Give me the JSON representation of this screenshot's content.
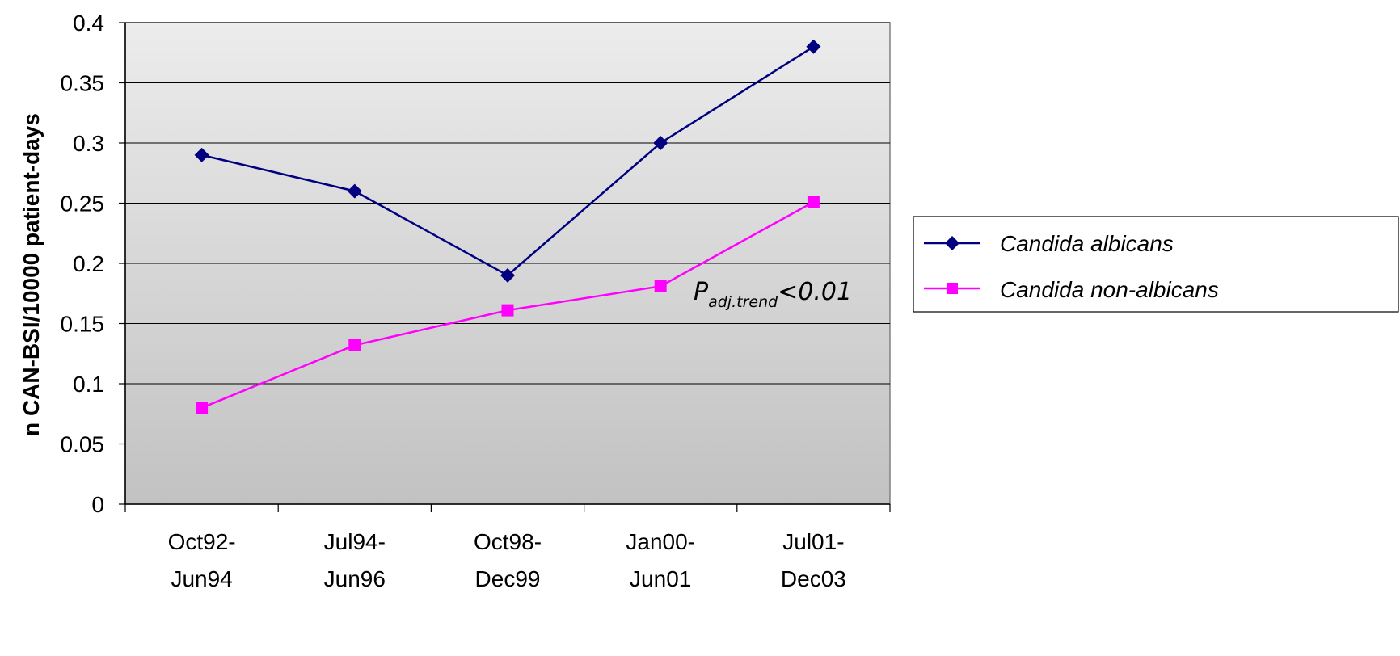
{
  "chart_data": {
    "type": "line",
    "title": "",
    "xlabel": "",
    "ylabel": "n CAN-BSI/10000 patient-days",
    "categories": [
      [
        "Oct92-",
        "Jun94"
      ],
      [
        "Jul94-",
        "Jun96"
      ],
      [
        "Oct98-",
        "Dec99"
      ],
      [
        "Jan00-",
        "Jun01"
      ],
      [
        "Jul01-",
        "Dec03"
      ]
    ],
    "ylim": [
      0,
      0.4
    ],
    "yticks": [
      "0",
      "0.05",
      "0.1",
      "0.15",
      "0.2",
      "0.25",
      "0.3",
      "0.35",
      "0.4"
    ],
    "grid": true,
    "legend_position": "right",
    "series": [
      {
        "name": "Candida albicans",
        "values": [
          0.29,
          0.26,
          0.19,
          0.3,
          0.38
        ],
        "color": "#000080",
        "marker": "diamond"
      },
      {
        "name": "Candida non-albicans",
        "values": [
          0.08,
          0.132,
          0.161,
          0.181,
          0.251
        ],
        "color": "#FF00FF",
        "marker": "square"
      }
    ],
    "annotation": {
      "main": "P",
      "subscript": "adj.trend",
      "rest": "<0.01"
    }
  }
}
